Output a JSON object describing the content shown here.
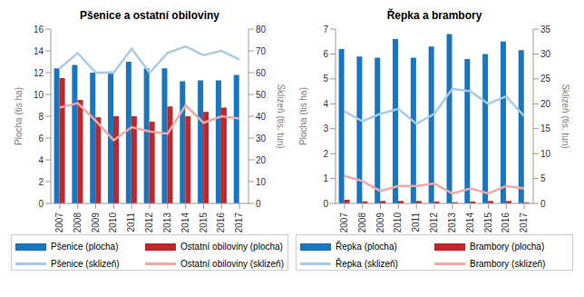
{
  "chart_data": [
    {
      "type": "bar",
      "title": "Pšenice a ostatní obiloviny",
      "categories": [
        "2007",
        "2008",
        "2009",
        "2010",
        "2011",
        "2012",
        "2013",
        "2014",
        "2015",
        "2016",
        "2017"
      ],
      "y_label": "Plocha (tis ha)",
      "y2_label": "Sklizeň (tis. tun)",
      "ylim": [
        0,
        16
      ],
      "yticks": [
        0,
        2,
        4,
        6,
        8,
        10,
        12,
        14,
        16
      ],
      "y2lim": [
        0,
        80
      ],
      "y2ticks": [
        0,
        10,
        20,
        30,
        40,
        50,
        60,
        70,
        80
      ],
      "legend": "bottom",
      "series": [
        {
          "name": "Pšenice (plocha)",
          "type": "bar",
          "color": "#1a75bc",
          "values": [
            12.4,
            12.7,
            12.0,
            12.1,
            13.0,
            12.4,
            12.4,
            11.2,
            11.3,
            11.3,
            11.8
          ]
        },
        {
          "name": "Ostatní obiloviny (plocha)",
          "type": "bar",
          "color": "#c0272d",
          "values": [
            11.5,
            9.5,
            7.9,
            8.0,
            8.0,
            7.5,
            8.9,
            8.0,
            8.4,
            8.8,
            null
          ]
        },
        {
          "name": "Pšenice (sklizeň)",
          "type": "line",
          "axis": "y2",
          "color": "#a6cbe8",
          "values": [
            62,
            69,
            60,
            60,
            71,
            60,
            69,
            72,
            68,
            70,
            66
          ]
        },
        {
          "name": "Ostatní obiloviny (sklizeň)",
          "type": "line",
          "axis": "y2",
          "color": "#f0a8a8",
          "values": [
            44,
            46,
            38,
            29,
            35,
            33,
            32,
            45,
            37,
            40,
            39
          ]
        }
      ]
    },
    {
      "type": "bar",
      "title": "Řepka a brambory",
      "categories": [
        "2007",
        "2008",
        "2009",
        "2010",
        "2011",
        "2012",
        "2013",
        "2014",
        "2015",
        "2016",
        "2017"
      ],
      "y_label": "Plocha (tis ha)",
      "y2_label": "Sklizeň (tis. tun)",
      "ylim": [
        0,
        7
      ],
      "yticks": [
        0,
        1,
        2,
        3,
        4,
        5,
        6,
        7
      ],
      "y2lim": [
        0,
        35
      ],
      "y2ticks": [
        0,
        5,
        10,
        15,
        20,
        25,
        30,
        35
      ],
      "legend": "bottom",
      "series": [
        {
          "name": "Řepka (plocha)",
          "type": "bar",
          "color": "#1a75bc",
          "values": [
            6.2,
            5.9,
            5.85,
            6.6,
            5.85,
            6.3,
            6.8,
            5.8,
            6.0,
            6.5,
            6.15
          ]
        },
        {
          "name": "Brambory (plocha)",
          "type": "bar",
          "color": "#c0272d",
          "values": [
            0.15,
            0.08,
            0.1,
            0.1,
            0.1,
            0.08,
            0.05,
            0.08,
            0.1,
            0.1,
            0.05
          ]
        },
        {
          "name": "Řepka (sklizeň)",
          "type": "line",
          "axis": "y2",
          "color": "#a6cbe8",
          "values": [
            18.5,
            16.5,
            18,
            19,
            16,
            18,
            23,
            22.5,
            20,
            21.5,
            17.5
          ]
        },
        {
          "name": "Brambory (sklizeň)",
          "type": "line",
          "axis": "y2",
          "color": "#f0a8a8",
          "values": [
            5.5,
            4.5,
            2.5,
            3.5,
            3.5,
            4,
            2,
            3,
            2,
            3.5,
            3
          ]
        }
      ]
    }
  ]
}
